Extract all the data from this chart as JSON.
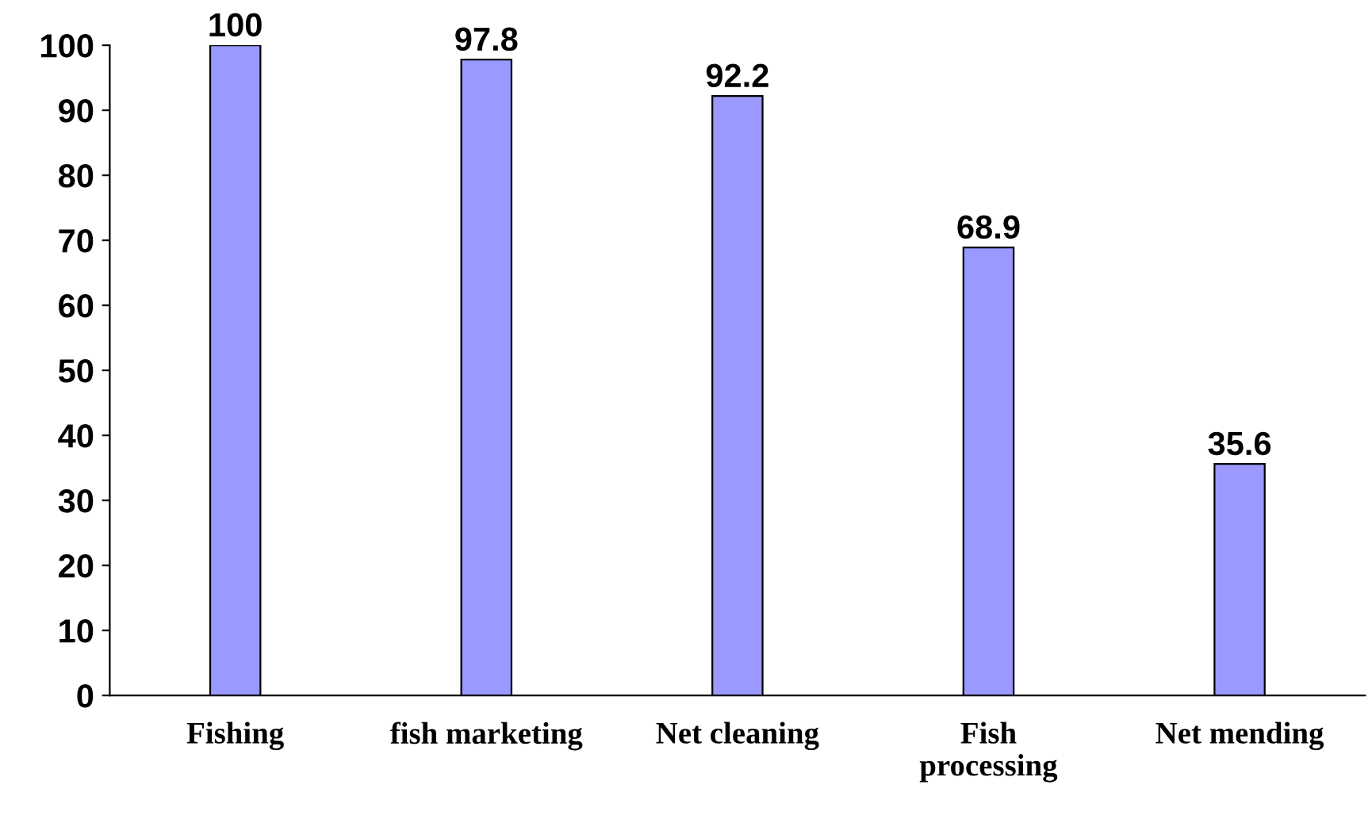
{
  "chart_data": {
    "type": "bar",
    "categories": [
      "Fishing",
      "fish marketing",
      "Net cleaning",
      "Fish\nprocessing",
      "Net mending"
    ],
    "values": [
      100,
      97.8,
      92.2,
      68.9,
      35.6
    ],
    "color": "#9999ff",
    "ylim": [
      0,
      100
    ],
    "yticks": [
      0,
      10,
      20,
      30,
      40,
      50,
      60,
      70,
      80,
      90,
      100
    ],
    "data_labels": true,
    "grid": false,
    "legend": false
  }
}
